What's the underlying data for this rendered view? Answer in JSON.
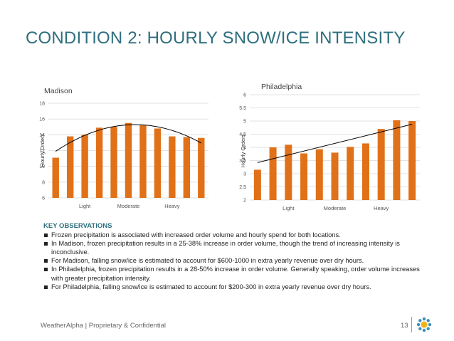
{
  "slide": {
    "title": "CONDITION 2: HOURLY SNOW/ICE INTENSITY",
    "footer": "WeatherAlpha | Proprietary & Confidential",
    "page_number": "13",
    "accent_color": "#2f6f7e",
    "bar_color": "#e07118"
  },
  "observations": {
    "heading": "KEY OBSERVATIONS",
    "items": [
      "Frozen precipitation is associated with increased order volume and hourly spend for both locations.",
      "In Madison, frozen precipitation results in a 25-38% increase in order volume, though the trend of increasing intensity is inconclusive.",
      "For Madison, falling snow/ice is estimated to account for $600-1000 in extra yearly revenue over dry hours.",
      "In Philadelphia, frozen precipitation results in a 28-50% increase in order volume.  Generally speaking, order volume increases with greater precipitation intensity.",
      "For Philadelphia, falling snow/ice is estimated to account for  $200-300 in extra yearly revenue over dry hours."
    ]
  },
  "chart_data": [
    {
      "type": "bar",
      "title": "Madison",
      "ylabel": "Hourly Orders",
      "xlabel": "",
      "ylim": [
        6,
        18
      ],
      "yticks": [
        "6",
        "8",
        "10",
        "12",
        "14",
        "16",
        "18"
      ],
      "xtick_labels": [
        "Light",
        "Moderate",
        "Heavy"
      ],
      "values": [
        11.1,
        13.8,
        14.0,
        14.9,
        15.0,
        15.5,
        15.2,
        14.8,
        13.8,
        13.7,
        13.6
      ],
      "trendline": "polynomial",
      "grid": true
    },
    {
      "type": "bar",
      "title": "Philadelphia",
      "ylabel": "Hourly Orders",
      "xlabel": "",
      "ylim": [
        2,
        6
      ],
      "yticks": [
        "2",
        "2.5",
        "3",
        "3.5",
        "4",
        "4.5",
        "5",
        "5.5",
        "6"
      ],
      "xtick_labels": [
        "Light",
        "Moderate",
        "Heavy"
      ],
      "values": [
        3.15,
        4.0,
        4.1,
        3.77,
        3.93,
        3.8,
        4.02,
        4.15,
        4.7,
        5.03,
        5.0
      ],
      "trendline": "linear",
      "grid": true
    }
  ]
}
